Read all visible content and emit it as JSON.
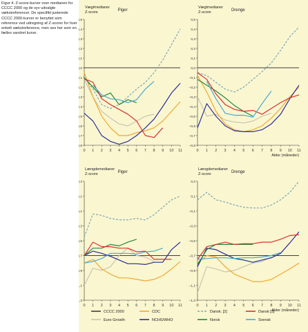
{
  "caption": "Figur 4. Z-score-kurver over medianen for CCCC 2000 og de syv udvalgte vækstreferencer. De specifikt justerede CCCC 2000-kurver er benyttet som reference ved udregning af Z-scorer for hver enkelt vækstreference, men ses her som en fælles vandret kurve.",
  "colors": {
    "CCCC 2000": "#3d3d3d",
    "Euro Growth": "#c8c4b0",
    "CDC": "#f0a830",
    "NCHS/WHO": "#2a2a9a",
    "Dansk. [2]": "#7aa8b6",
    "Norsk": "#1e8a3a",
    "Dansk [3]": "#d83030",
    "Svensk": "#48a8d0",
    "background": "#faf6d0"
  },
  "legend": [
    {
      "key": "CCCC 2000",
      "label": "CCCC 2000",
      "style": "solid"
    },
    {
      "key": "CDC",
      "label": "CDC",
      "style": "solid"
    },
    {
      "key": "Dansk. [2]",
      "label": "Dansk. [2]",
      "style": "dashed"
    },
    {
      "key": "Dansk [3]",
      "label": "Dansk [3]",
      "style": "solid"
    },
    {
      "key": "Euro Growth",
      "label": "Euro Growth",
      "style": "solid"
    },
    {
      "key": "NCHS/WHO",
      "label": "NCHS/WHO",
      "style": "solid"
    },
    {
      "key": "Norsk",
      "label": "Norsk",
      "style": "solid"
    },
    {
      "key": "Svensk",
      "label": "Svensk",
      "style": "solid"
    }
  ],
  "chart_data": [
    {
      "type": "line",
      "title": "Piger",
      "ylabel_lines": [
        "Vægtmedianer",
        "Z-score"
      ],
      "xlabel": "",
      "xlim": [
        0,
        11
      ],
      "ylim": [
        -0.8,
        0.5
      ],
      "x_ticks": [
        "0",
        "1",
        "2",
        "3",
        "4",
        "5",
        "6",
        "7",
        "8",
        "9",
        "10",
        "11"
      ],
      "y_ticks": [
        "0,5",
        "0,4",
        "0,3",
        "0,2",
        "0,1",
        "0,0",
        "–0,1",
        "–0,2",
        "–0,3",
        "–0,4",
        "–0,5",
        "–0,6",
        "–0,7",
        "–0,8"
      ],
      "grid": false,
      "series": [
        {
          "name": "CCCC 2000",
          "x": [
            0,
            11
          ],
          "y": [
            0,
            0
          ]
        },
        {
          "name": "Dansk. [2]",
          "x": [
            0,
            1,
            2,
            3,
            4,
            5,
            6,
            7,
            8,
            9,
            10,
            11
          ],
          "y": [
            -0.1,
            -0.22,
            -0.38,
            -0.42,
            -0.38,
            -0.3,
            -0.22,
            -0.15,
            -0.05,
            0.08,
            0.24,
            0.4
          ]
        },
        {
          "name": "Euro Growth",
          "x": [
            0,
            1,
            2,
            3,
            4,
            5,
            6,
            7,
            8
          ],
          "y": [
            -0.12,
            -0.3,
            -0.45,
            -0.52,
            -0.58,
            -0.6,
            -0.55,
            -0.5,
            -0.48
          ]
        },
        {
          "name": "CDC",
          "x": [
            0,
            1,
            2,
            3,
            4,
            5,
            6,
            7,
            8,
            9,
            10,
            11
          ],
          "y": [
            -0.05,
            -0.3,
            -0.5,
            -0.62,
            -0.7,
            -0.7,
            -0.67,
            -0.65,
            -0.62,
            -0.55,
            -0.45,
            -0.35
          ]
        },
        {
          "name": "NCHS/WHO",
          "x": [
            0,
            1,
            2,
            3,
            4,
            5,
            6,
            7,
            8,
            9,
            10,
            11
          ],
          "y": [
            -0.47,
            -0.55,
            -0.7,
            -0.76,
            -0.79,
            -0.76,
            -0.7,
            -0.62,
            -0.53,
            -0.4,
            -0.26,
            -0.16
          ]
        },
        {
          "name": "Norsk",
          "x": [
            0,
            1,
            2,
            3,
            4,
            5,
            6
          ],
          "y": [
            -0.1,
            -0.2,
            -0.3,
            -0.26,
            -0.38,
            -0.33,
            -0.36
          ]
        },
        {
          "name": "Dansk [3]",
          "x": [
            0,
            0.5,
            1,
            2,
            3,
            4,
            5,
            6,
            7,
            8,
            9
          ],
          "y": [
            -0.12,
            -0.13,
            -0.15,
            -0.32,
            -0.38,
            -0.43,
            -0.48,
            -0.55,
            -0.7,
            -0.72,
            -0.62
          ]
        },
        {
          "name": "Svensk",
          "x": [
            1,
            2,
            3,
            4,
            5,
            6,
            7,
            8
          ],
          "y": [
            -0.18,
            -0.28,
            -0.32,
            -0.33,
            -0.36,
            -0.33,
            -0.22,
            -0.14
          ]
        }
      ]
    },
    {
      "type": "line",
      "title": "Drenge",
      "ylabel_lines": [
        "Vægtmedianer",
        "Z-score"
      ],
      "xlabel": "Alder (måneder)",
      "xlim": [
        0,
        11
      ],
      "ylim": [
        -0.8,
        0.5
      ],
      "x_ticks": [
        "0",
        "1",
        "2",
        "3",
        "4",
        "5",
        "6",
        "7",
        "8",
        "9",
        "10",
        "11"
      ],
      "y_ticks": [
        "0,5",
        "0,4",
        "0,3",
        "0,2",
        "0,1",
        "0,0",
        "–0,1",
        "–0,2",
        "–0,3",
        "–0,4",
        "–0,5",
        "–0,6",
        "–0,7",
        "–0,8"
      ],
      "grid": false,
      "series": [
        {
          "name": "CCCC 2000",
          "x": [
            0,
            11
          ],
          "y": [
            0,
            0
          ]
        },
        {
          "name": "Dansk. [2]",
          "x": [
            0,
            1,
            2,
            3,
            4,
            5,
            6,
            7,
            8,
            9,
            10,
            11
          ],
          "y": [
            -0.05,
            -0.08,
            -0.15,
            -0.22,
            -0.25,
            -0.2,
            -0.12,
            -0.04,
            0.05,
            0.18,
            0.32,
            0.42
          ]
        },
        {
          "name": "Euro Growth",
          "x": [
            0,
            1,
            2,
            3,
            4,
            5,
            6,
            7,
            8
          ],
          "y": [
            -0.3,
            -0.5,
            -0.48,
            -0.54,
            -0.56,
            -0.57,
            -0.55,
            -0.5,
            -0.47
          ]
        },
        {
          "name": "CDC",
          "x": [
            0,
            1,
            2,
            3,
            4,
            5,
            6,
            7,
            8,
            9,
            10,
            11
          ],
          "y": [
            -0.08,
            -0.25,
            -0.45,
            -0.58,
            -0.64,
            -0.66,
            -0.64,
            -0.6,
            -0.52,
            -0.42,
            -0.3,
            -0.2
          ]
        },
        {
          "name": "NCHS/WHO",
          "x": [
            0,
            1,
            2,
            3,
            4,
            5,
            6,
            7,
            8,
            9,
            10,
            11
          ],
          "y": [
            -0.62,
            -0.37,
            -0.5,
            -0.6,
            -0.65,
            -0.66,
            -0.66,
            -0.64,
            -0.58,
            -0.48,
            -0.32,
            -0.18
          ]
        },
        {
          "name": "Norsk",
          "x": [
            0,
            1,
            2,
            3,
            4,
            5,
            6
          ],
          "y": [
            -0.12,
            -0.18,
            -0.24,
            -0.31,
            -0.39,
            -0.45,
            -0.5
          ]
        },
        {
          "name": "Dansk [3]",
          "x": [
            0,
            1,
            2,
            3,
            4,
            5,
            6,
            7,
            8,
            9,
            10,
            11
          ],
          "y": [
            -0.05,
            -0.12,
            -0.27,
            -0.38,
            -0.43,
            -0.45,
            -0.44,
            -0.48,
            -0.42,
            -0.36,
            -0.31,
            -0.28
          ]
        },
        {
          "name": "Svensk",
          "x": [
            1,
            2,
            3,
            4,
            5,
            6,
            7,
            8
          ],
          "y": [
            -0.14,
            -0.32,
            -0.47,
            -0.49,
            -0.49,
            -0.51,
            -0.37,
            -0.24
          ]
        }
      ]
    },
    {
      "type": "line",
      "title": "Piger",
      "ylabel_lines": [
        "Længdemedianer",
        "Z-score"
      ],
      "xlabel": "",
      "xlim": [
        0,
        11
      ],
      "ylim": [
        -1.3,
        0.3
      ],
      "x_ticks": [
        "0",
        "1",
        "2",
        "3",
        "4",
        "5",
        "6",
        "7",
        "8",
        "9",
        "10",
        "11"
      ],
      "y_ticks": [
        "0,3",
        "0,1",
        "–0,1",
        "–0,3",
        "–0,5",
        "–0,7",
        "–0,9",
        "–1,1",
        "–1,3"
      ],
      "grid": false,
      "series": [
        {
          "name": "CCCC 2000",
          "x": [
            0,
            11
          ],
          "y": [
            -0.7,
            -0.7
          ]
        },
        {
          "name": "Dansk. [2]",
          "x": [
            0,
            1,
            2,
            3,
            4,
            5,
            6,
            7,
            8,
            9,
            10,
            11
          ],
          "y": [
            -0.45,
            -0.14,
            -0.16,
            -0.2,
            -0.22,
            -0.22,
            -0.2,
            -0.22,
            -0.15,
            -0.05,
            0.05,
            0.1
          ]
        },
        {
          "name": "Euro Growth",
          "x": [
            0,
            1,
            2,
            3,
            4,
            5,
            6,
            7,
            8
          ],
          "y": [
            -1.1,
            -0.87,
            -0.9,
            -0.85,
            -0.7,
            -0.6,
            -0.7,
            -0.72,
            -0.78
          ]
        },
        {
          "name": "CDC",
          "x": [
            0,
            1,
            2,
            3,
            4,
            5,
            6,
            7,
            8,
            9,
            10,
            11
          ],
          "y": [
            -0.8,
            -0.75,
            -0.88,
            -0.95,
            -1.0,
            -1.0,
            -1.02,
            -1.04,
            -1.02,
            -0.97,
            -0.88,
            -0.78
          ]
        },
        {
          "name": "NCHS/WHO",
          "x": [
            0,
            1,
            2,
            3,
            4,
            5,
            6,
            7,
            8,
            9,
            10,
            11
          ],
          "y": [
            -0.7,
            -0.64,
            -0.67,
            -0.71,
            -0.76,
            -0.81,
            -0.81,
            -0.82,
            -0.79,
            -0.79,
            -0.62,
            -0.52
          ]
        },
        {
          "name": "Norsk",
          "x": [
            0,
            1,
            2,
            3,
            4,
            5,
            6
          ],
          "y": [
            -0.7,
            -0.6,
            -0.6,
            -0.55,
            -0.57,
            -0.52,
            -0.48
          ]
        },
        {
          "name": "Dansk [3]",
          "x": [
            0,
            1,
            2,
            3,
            4,
            5,
            6,
            7,
            8,
            9,
            10
          ],
          "y": [
            -0.7,
            -0.52,
            -0.58,
            -0.58,
            -0.6,
            -0.6,
            -0.65,
            -0.64,
            -0.75,
            -0.75,
            -0.75
          ]
        },
        {
          "name": "Svensk",
          "x": [
            0,
            1,
            2,
            3,
            4,
            5,
            6,
            7,
            8,
            9
          ],
          "y": [
            -0.8,
            -0.78,
            -0.74,
            -0.67,
            -0.67,
            -0.67,
            -0.68,
            -0.65,
            -0.64,
            -0.6
          ]
        }
      ]
    },
    {
      "type": "line",
      "title": "Drenge",
      "ylabel_lines": [
        "Længdemedianer",
        "Z-score"
      ],
      "xlabel": "Alder (måneder)",
      "xlim": [
        0,
        11
      ],
      "ylim": [
        -1.3,
        0.3
      ],
      "x_ticks": [
        "0",
        "1",
        "2",
        "3",
        "4",
        "5",
        "6",
        "7",
        "8",
        "9",
        "10",
        "11"
      ],
      "y_ticks": [
        "0,3",
        "0,1",
        "–0,1",
        "–0,3",
        "–0,5",
        "–0,7",
        "–0,9",
        "–1,1",
        "–1,3"
      ],
      "grid": false,
      "series": [
        {
          "name": "CCCC 2000",
          "x": [
            0,
            11
          ],
          "y": [
            -0.7,
            -0.7
          ]
        },
        {
          "name": "Dansk. [2]",
          "x": [
            0,
            1,
            2,
            3,
            4,
            5,
            6,
            7,
            8,
            9,
            10,
            11
          ],
          "y": [
            0.05,
            0.15,
            0.05,
            0.02,
            -0.02,
            -0.05,
            -0.06,
            -0.06,
            -0.02,
            0.05,
            0.15,
            0.3
          ]
        },
        {
          "name": "Euro Growth",
          "x": [
            0,
            1,
            2,
            3,
            4,
            5,
            6,
            7,
            8
          ],
          "y": [
            -1.2,
            -0.85,
            -0.88,
            -0.92,
            -0.9,
            -0.85,
            -0.8,
            -0.78,
            -0.72
          ]
        },
        {
          "name": "CDC",
          "x": [
            0,
            1,
            2,
            3,
            4,
            5,
            6,
            7,
            8,
            9,
            10,
            11
          ],
          "y": [
            -0.8,
            -0.7,
            -0.72,
            -0.85,
            -0.95,
            -1.0,
            -1.05,
            -1.05,
            -1.02,
            -0.95,
            -0.88,
            -0.8
          ]
        },
        {
          "name": "NCHS/WHO",
          "x": [
            0,
            1,
            2,
            3,
            4,
            5,
            6,
            7,
            8,
            9,
            10,
            11
          ],
          "y": [
            -0.85,
            -0.6,
            -0.62,
            -0.68,
            -0.74,
            -0.76,
            -0.79,
            -0.76,
            -0.73,
            -0.67,
            -0.53,
            -0.38
          ]
        },
        {
          "name": "Norsk",
          "x": [
            0,
            1,
            2,
            3,
            4,
            5,
            6
          ],
          "y": [
            -0.82,
            -0.62,
            -0.55,
            -0.55,
            -0.55,
            -0.55,
            -0.55
          ]
        },
        {
          "name": "Dansk [3]",
          "x": [
            0,
            1,
            2,
            3,
            4,
            5,
            6,
            7,
            8,
            9,
            10,
            11
          ],
          "y": [
            -0.75,
            -0.58,
            -0.55,
            -0.52,
            -0.55,
            -0.54,
            -0.54,
            -0.52,
            -0.52,
            -0.48,
            -0.43,
            -0.42
          ]
        },
        {
          "name": "Svensk",
          "x": [
            0,
            1,
            2,
            3,
            4,
            5,
            6,
            7,
            8,
            9
          ],
          "y": [
            -0.75,
            -0.74,
            -0.73,
            -0.73,
            -0.74,
            -0.73,
            -0.73,
            -0.72,
            -0.7,
            -0.66
          ]
        }
      ]
    }
  ]
}
